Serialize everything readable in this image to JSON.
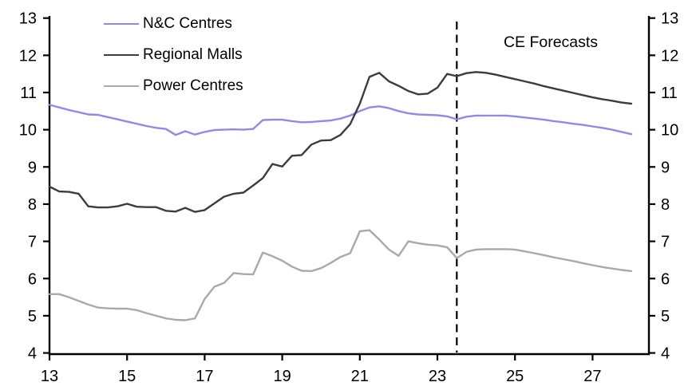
{
  "chart_data": {
    "type": "line",
    "title": "",
    "xlabel": "",
    "ylabel": "",
    "grid": false,
    "background": "#ffffff",
    "axis_color": "#000000",
    "x_axis": {
      "ticks": [
        13,
        15,
        17,
        19,
        21,
        23,
        25,
        27
      ],
      "range": [
        13,
        28.1
      ]
    },
    "y_axis_left": {
      "ticks": [
        4,
        5,
        6,
        7,
        8,
        9,
        10,
        11,
        12,
        13
      ],
      "range": [
        4,
        13
      ]
    },
    "y_axis_right": {
      "ticks": [
        4,
        5,
        6,
        7,
        8,
        9,
        10,
        11,
        12,
        13
      ],
      "range": [
        4,
        13
      ]
    },
    "x_start": 13,
    "x_step": 0.25,
    "annotations": {
      "forecast_label": "CE Forecasts",
      "forecast_divider_x": 23.5,
      "divider_style": "dashed",
      "divider_color": "#000000"
    },
    "legend_position": "top-left",
    "series": [
      {
        "name": "N&C Centres",
        "color": "#8c8ce8",
        "values": [
          10.67,
          10.6,
          10.53,
          10.47,
          10.41,
          10.4,
          10.34,
          10.28,
          10.22,
          10.16,
          10.1,
          10.05,
          10.02,
          9.86,
          9.96,
          9.87,
          9.94,
          9.99,
          10.0,
          10.01,
          10.0,
          10.02,
          10.26,
          10.27,
          10.27,
          10.23,
          10.2,
          10.21,
          10.23,
          10.25,
          10.3,
          10.38,
          10.5,
          10.6,
          10.63,
          10.58,
          10.5,
          10.44,
          10.41,
          10.4,
          10.39,
          10.36,
          10.28,
          10.35,
          10.38,
          10.38,
          10.38,
          10.38,
          10.36,
          10.33,
          10.3,
          10.27,
          10.23,
          10.2,
          10.16,
          10.13,
          10.09,
          10.05,
          10.0,
          9.94,
          9.88
        ]
      },
      {
        "name": "Regional Malls",
        "color": "#3c3c3c",
        "values": [
          8.47,
          8.34,
          8.33,
          8.28,
          7.94,
          7.91,
          7.91,
          7.94,
          8.01,
          7.93,
          7.92,
          7.92,
          7.82,
          7.8,
          7.9,
          7.79,
          7.84,
          8.02,
          8.2,
          8.28,
          8.31,
          8.5,
          8.7,
          9.08,
          9.01,
          9.3,
          9.32,
          9.6,
          9.71,
          9.72,
          9.86,
          10.15,
          10.7,
          11.42,
          11.53,
          11.3,
          11.18,
          11.04,
          10.95,
          10.97,
          11.13,
          11.5,
          11.44,
          11.52,
          11.55,
          11.53,
          11.48,
          11.42,
          11.36,
          11.3,
          11.24,
          11.17,
          11.11,
          11.05,
          10.99,
          10.93,
          10.87,
          10.82,
          10.78,
          10.73,
          10.7
        ]
      },
      {
        "name": "Power Centres",
        "color": "#a9a9a9",
        "values": [
          5.58,
          5.58,
          5.5,
          5.4,
          5.3,
          5.22,
          5.2,
          5.19,
          5.19,
          5.15,
          5.07,
          5.0,
          4.93,
          4.89,
          4.88,
          4.93,
          5.45,
          5.78,
          5.88,
          6.15,
          6.12,
          6.11,
          6.7,
          6.6,
          6.48,
          6.32,
          6.21,
          6.2,
          6.28,
          6.42,
          6.58,
          6.68,
          7.27,
          7.3,
          7.05,
          6.78,
          6.61,
          7.0,
          6.95,
          6.91,
          6.89,
          6.84,
          6.55,
          6.72,
          6.78,
          6.79,
          6.79,
          6.79,
          6.78,
          6.73,
          6.68,
          6.63,
          6.57,
          6.52,
          6.47,
          6.41,
          6.36,
          6.31,
          6.27,
          6.23,
          6.2
        ]
      }
    ]
  }
}
